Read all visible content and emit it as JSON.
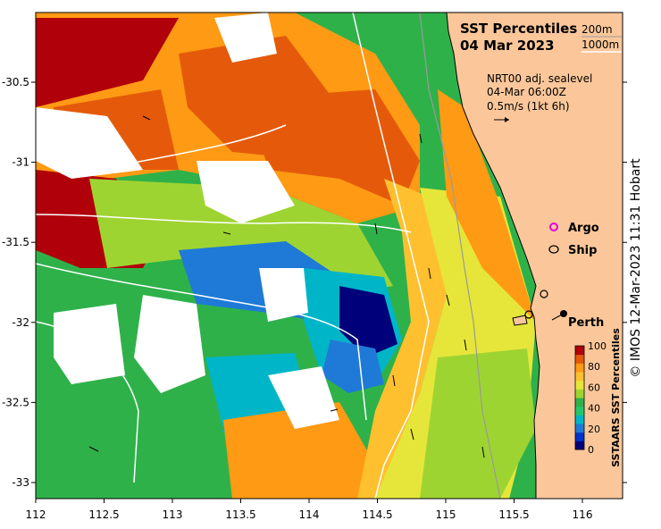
{
  "map": {
    "title": "SST Percentiles",
    "date": "04 Mar 2023",
    "contours": {
      "shallow": "200m",
      "deep": "1000m"
    },
    "current_note": {
      "line1": "NRT00 adj. sealevel",
      "line2": "04-Mar 06:00Z",
      "line3": "0.5m/s (1kt 6h)"
    },
    "legend_markers": {
      "argo": "Argo",
      "ship": "Ship"
    },
    "place": "Perth",
    "colorbar": {
      "title": "SSTAARS SST Percentiles",
      "ticks": [
        "100",
        "80",
        "60",
        "40",
        "20",
        "0"
      ],
      "colors": [
        "#00007a",
        "#0033cc",
        "#1e7ad6",
        "#00b5c8",
        "#21c86a",
        "#2fb14a",
        "#9ed432",
        "#e6e63a",
        "#ffc030",
        "#ff9a14",
        "#e45a0a",
        "#b0000a"
      ]
    },
    "x_ticks": [
      "112",
      "112.5",
      "113",
      "113.5",
      "114",
      "114.5",
      "115",
      "115.5",
      "116"
    ],
    "y_ticks": [
      "-30.5",
      "-31",
      "-31.5",
      "-32",
      "-32.5",
      "-33"
    ],
    "land_color": "#fbc79a",
    "copyright": "© IMOS 12-Mar-2023 11:31 Hobart"
  }
}
